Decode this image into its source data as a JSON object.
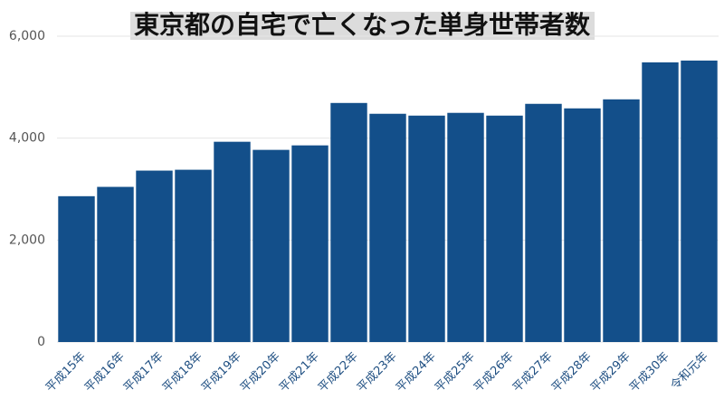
{
  "chart_data": {
    "type": "bar",
    "title": "東京都の自宅で亡くなった単身世帯者数",
    "categories": [
      "平成15年",
      "平成16年",
      "平成17年",
      "平成18年",
      "平成19年",
      "平成20年",
      "平成21年",
      "平成22年",
      "平成23年",
      "平成24年",
      "平成25年",
      "平成26年",
      "平成27年",
      "平成28年",
      "平成29年",
      "平成30年",
      "令和元年"
    ],
    "values": [
      2861,
      3044,
      3363,
      3380,
      3929,
      3770,
      3858,
      4690,
      4478,
      4442,
      4496,
      4442,
      4673,
      4584,
      4761,
      5487,
      5522
    ],
    "color": "#134f8a",
    "ylim": [
      0,
      6000
    ],
    "yticks": [
      0,
      {
        "value": 2000,
        "label": "2,000"
      },
      {
        "value": 4000,
        "label": "4,000"
      },
      {
        "value": 6000,
        "label": "6,000"
      }
    ],
    "grid": true
  }
}
